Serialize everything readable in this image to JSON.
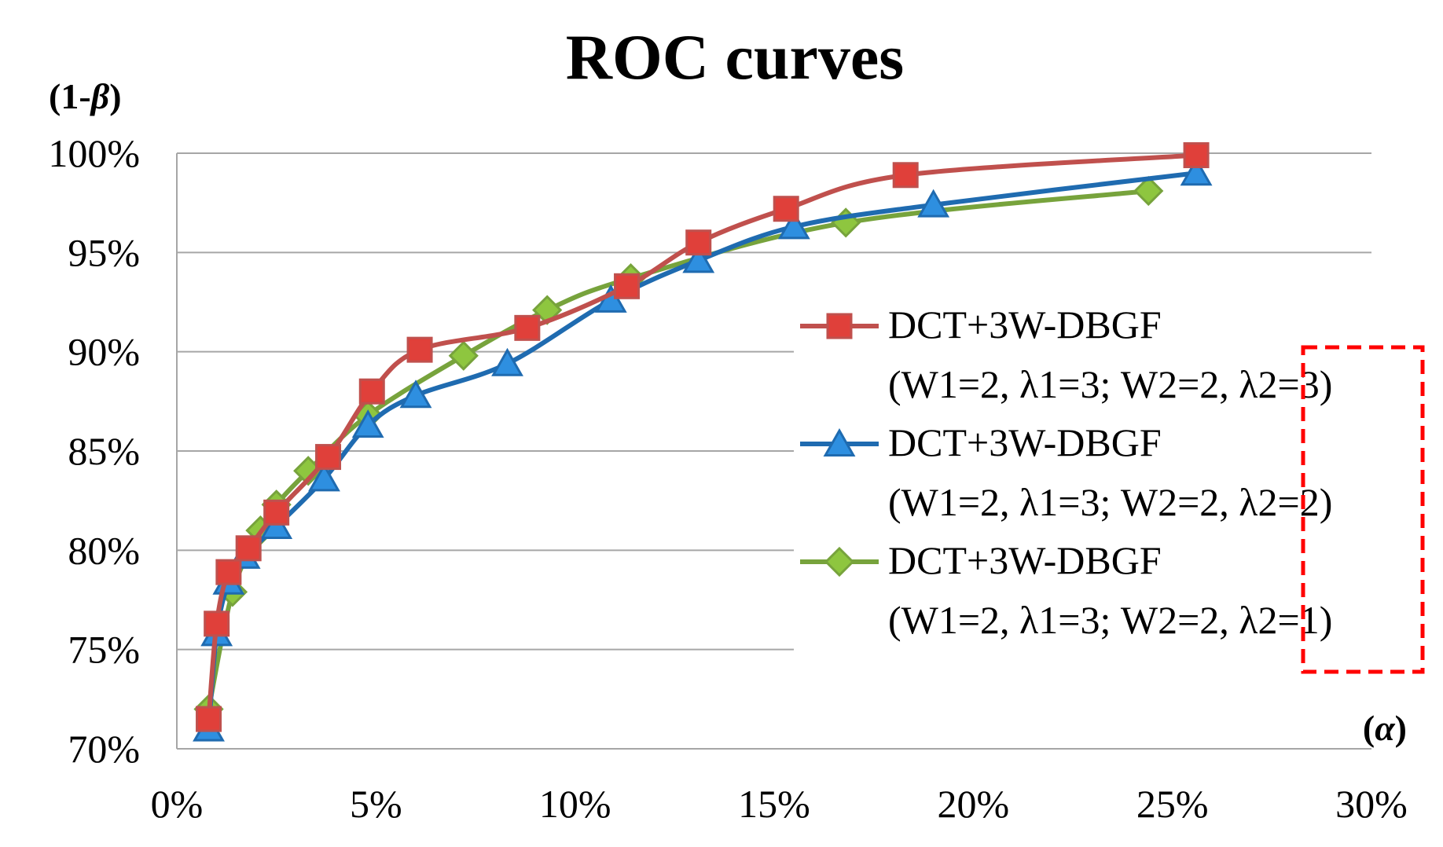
{
  "chart_data": {
    "type": "line",
    "title": "ROC curves",
    "ylabel_prefix": "(1-",
    "ylabel_symbol": "β",
    "ylabel_suffix": ")",
    "xlabel_prefix": "(",
    "xlabel_symbol": "α",
    "xlabel_suffix": ")",
    "xlim": [
      0,
      30
    ],
    "ylim": [
      70,
      100
    ],
    "x_ticks": [
      "0%",
      "5%",
      "10%",
      "15%",
      "20%",
      "25%",
      "30%"
    ],
    "y_ticks": [
      "70%",
      "75%",
      "80%",
      "85%",
      "90%",
      "95%",
      "100%"
    ],
    "series": [
      {
        "name": "DCT+3W-DBGF",
        "params": "(W1=2, λ1=3; W2=2, λ2=3)",
        "marker": "square",
        "color": "#c0504d",
        "marker_fill": "#e0403a",
        "x": [
          0.8,
          1.0,
          1.3,
          1.8,
          2.5,
          3.8,
          4.9,
          6.1,
          8.8,
          11.3,
          13.1,
          15.3,
          18.3,
          25.6
        ],
        "y": [
          71.5,
          76.3,
          78.9,
          80.1,
          81.9,
          84.7,
          88.0,
          90.1,
          91.2,
          93.3,
          95.5,
          97.2,
          98.9,
          99.9
        ]
      },
      {
        "name": "DCT+3W-DBGF",
        "params": "(W1=2, λ1=3; W2=2, λ2=2)",
        "marker": "triangle",
        "color": "#1f6bb0",
        "marker_fill": "#2e8fe0",
        "x": [
          0.8,
          1.0,
          1.3,
          1.7,
          2.5,
          3.7,
          4.8,
          6.0,
          8.3,
          10.9,
          13.1,
          15.5,
          19.0,
          25.6
        ],
        "y": [
          71.0,
          75.8,
          78.4,
          79.7,
          81.2,
          83.6,
          86.3,
          87.8,
          89.4,
          92.6,
          94.6,
          96.3,
          97.4,
          99.0
        ]
      },
      {
        "name": "DCT+3W-DBGF",
        "params": "(W1=2, λ1=3; W2=2, λ2=1)",
        "marker": "diamond",
        "color": "#77a33c",
        "marker_fill": "#8ec63f",
        "x": [
          0.8,
          1.4,
          2.1,
          2.5,
          3.3,
          4.8,
          7.2,
          9.3,
          11.4,
          16.8,
          24.4
        ],
        "y": [
          72.0,
          77.9,
          81.0,
          82.3,
          84.0,
          86.8,
          89.8,
          92.1,
          93.7,
          96.5,
          98.1
        ]
      }
    ],
    "highlight_box": "red dashed box around λ2 values in legend"
  }
}
